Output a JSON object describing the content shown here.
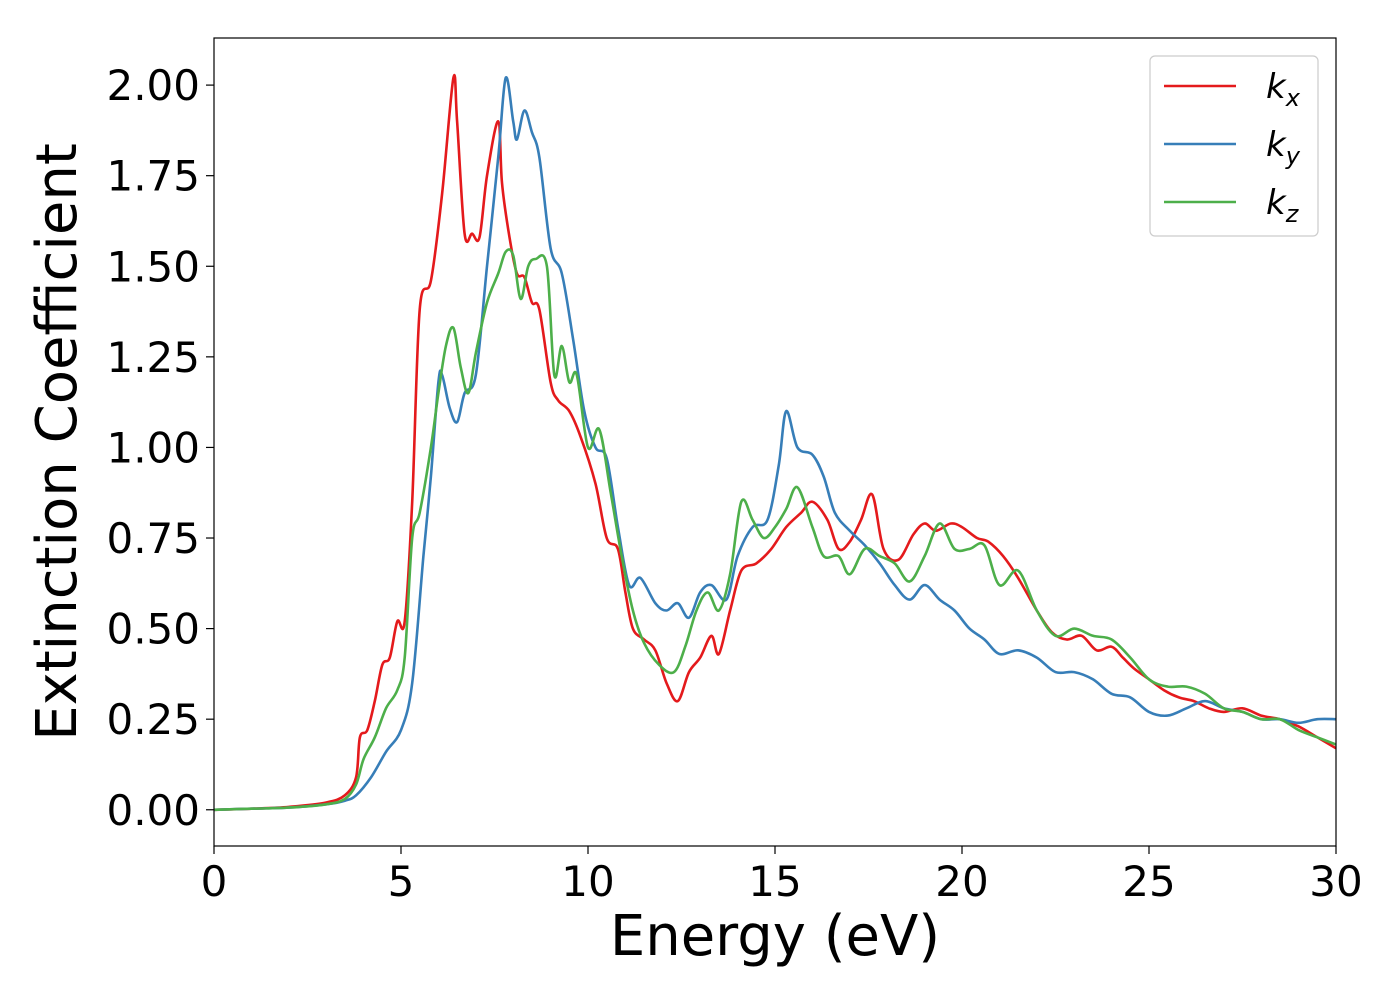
{
  "chart_data": {
    "type": "line",
    "title": "",
    "xlabel": "Energy (eV)",
    "ylabel": "Extinction Coefficient",
    "xlim": [
      0,
      30
    ],
    "ylim": [
      -0.1,
      2.13
    ],
    "xticks": [
      0,
      5,
      10,
      15,
      20,
      25,
      30
    ],
    "xtick_labels": [
      "0",
      "5",
      "10",
      "15",
      "20",
      "25",
      "30"
    ],
    "yticks": [
      0.0,
      0.25,
      0.5,
      0.75,
      1.0,
      1.25,
      1.5,
      1.75,
      2.0
    ],
    "ytick_labels": [
      "0.00",
      "0.25",
      "0.50",
      "0.75",
      "1.00",
      "1.25",
      "1.50",
      "1.75",
      "2.00"
    ],
    "grid": false,
    "legend": "top-right",
    "series": [
      {
        "name": "k_x",
        "label_base": "k",
        "label_sub": "x",
        "color": "#e41a1c",
        "x": [
          0,
          1,
          2,
          3,
          3.5,
          3.8,
          3.9,
          4.1,
          4.3,
          4.5,
          4.7,
          4.9,
          5.1,
          5.3,
          5.5,
          5.8,
          6.1,
          6.4,
          6.5,
          6.7,
          6.9,
          7.1,
          7.3,
          7.6,
          7.7,
          7.9,
          8.1,
          8.3,
          8.5,
          8.7,
          9.0,
          9.2,
          9.5,
          9.8,
          10.2,
          10.5,
          10.8,
          11.0,
          11.2,
          11.5,
          11.8,
          12.1,
          12.4,
          12.7,
          13.0,
          13.3,
          13.5,
          13.8,
          14.1,
          14.5,
          14.9,
          15.3,
          15.7,
          16.0,
          16.4,
          16.7,
          17.0,
          17.3,
          17.6,
          17.9,
          18.3,
          18.7,
          19.0,
          19.3,
          19.7,
          20.0,
          20.4,
          20.7,
          21.1,
          21.5,
          22.0,
          22.4,
          22.8,
          23.2,
          23.6,
          24.0,
          24.3,
          24.6,
          25.0,
          25.4,
          25.8,
          26.2,
          26.6,
          27.0,
          27.5,
          28.0,
          28.5,
          29.0,
          29.5,
          30.0
        ],
        "y": [
          0,
          0.003,
          0.008,
          0.02,
          0.04,
          0.09,
          0.2,
          0.22,
          0.3,
          0.4,
          0.42,
          0.52,
          0.52,
          0.85,
          1.38,
          1.46,
          1.7,
          2.02,
          1.9,
          1.59,
          1.59,
          1.58,
          1.75,
          1.9,
          1.73,
          1.58,
          1.48,
          1.47,
          1.4,
          1.38,
          1.18,
          1.13,
          1.1,
          1.03,
          0.9,
          0.75,
          0.72,
          0.6,
          0.5,
          0.47,
          0.44,
          0.35,
          0.3,
          0.38,
          0.42,
          0.48,
          0.43,
          0.55,
          0.66,
          0.68,
          0.72,
          0.78,
          0.82,
          0.85,
          0.8,
          0.72,
          0.74,
          0.8,
          0.87,
          0.72,
          0.69,
          0.76,
          0.79,
          0.77,
          0.79,
          0.78,
          0.75,
          0.74,
          0.7,
          0.64,
          0.55,
          0.49,
          0.47,
          0.48,
          0.44,
          0.45,
          0.42,
          0.39,
          0.36,
          0.33,
          0.31,
          0.3,
          0.28,
          0.27,
          0.28,
          0.26,
          0.25,
          0.23,
          0.2,
          0.17
        ]
      },
      {
        "name": "k_y",
        "label_base": "k",
        "label_sub": "y",
        "color": "#377eb8",
        "x": [
          0,
          1,
          2,
          3,
          3.5,
          3.8,
          4.2,
          4.6,
          5.0,
          5.3,
          5.6,
          5.8,
          6.0,
          6.1,
          6.3,
          6.5,
          6.7,
          7.0,
          7.3,
          7.6,
          7.8,
          8.0,
          8.1,
          8.3,
          8.5,
          8.7,
          9.0,
          9.3,
          9.6,
          9.9,
          10.2,
          10.5,
          10.8,
          11.1,
          11.4,
          11.8,
          12.1,
          12.4,
          12.7,
          13.0,
          13.3,
          13.7,
          14.0,
          14.4,
          14.8,
          15.1,
          15.3,
          15.6,
          16.0,
          16.3,
          16.6,
          17.0,
          17.4,
          17.8,
          18.2,
          18.6,
          19.0,
          19.4,
          19.8,
          20.2,
          20.6,
          21.0,
          21.5,
          22.0,
          22.5,
          23.0,
          23.5,
          24.0,
          24.5,
          25.0,
          25.5,
          26.0,
          26.5,
          27.0,
          27.5,
          28.0,
          28.5,
          29.0,
          29.5,
          30.0
        ],
        "y": [
          0,
          0.003,
          0.006,
          0.015,
          0.025,
          0.04,
          0.09,
          0.16,
          0.22,
          0.35,
          0.7,
          0.92,
          1.18,
          1.2,
          1.11,
          1.07,
          1.15,
          1.2,
          1.5,
          1.8,
          2.02,
          1.9,
          1.85,
          1.93,
          1.87,
          1.8,
          1.55,
          1.48,
          1.3,
          1.1,
          1.0,
          0.97,
          0.78,
          0.62,
          0.64,
          0.57,
          0.55,
          0.57,
          0.53,
          0.6,
          0.62,
          0.58,
          0.7,
          0.78,
          0.8,
          0.95,
          1.1,
          1.0,
          0.98,
          0.92,
          0.82,
          0.77,
          0.73,
          0.68,
          0.62,
          0.58,
          0.62,
          0.58,
          0.55,
          0.5,
          0.47,
          0.43,
          0.44,
          0.42,
          0.38,
          0.38,
          0.36,
          0.32,
          0.31,
          0.27,
          0.26,
          0.28,
          0.3,
          0.28,
          0.27,
          0.25,
          0.25,
          0.24,
          0.25,
          0.25
        ]
      },
      {
        "name": "k_z",
        "label_base": "k",
        "label_sub": "z",
        "color": "#4daf4a",
        "x": [
          0,
          1,
          2,
          3,
          3.5,
          3.8,
          4.0,
          4.3,
          4.6,
          4.9,
          5.1,
          5.3,
          5.5,
          5.8,
          6.0,
          6.2,
          6.4,
          6.6,
          6.8,
          7.0,
          7.3,
          7.6,
          7.8,
          8.0,
          8.2,
          8.4,
          8.6,
          8.9,
          9.1,
          9.3,
          9.5,
          9.7,
          10.0,
          10.3,
          10.6,
          10.9,
          11.2,
          11.5,
          11.9,
          12.3,
          12.6,
          12.9,
          13.2,
          13.5,
          13.8,
          14.1,
          14.4,
          14.7,
          15.0,
          15.3,
          15.6,
          16.0,
          16.3,
          16.7,
          17.0,
          17.4,
          17.8,
          18.2,
          18.6,
          19.0,
          19.4,
          19.8,
          20.2,
          20.6,
          21.0,
          21.5,
          22.0,
          22.5,
          23.0,
          23.5,
          24.0,
          24.5,
          25.0,
          25.5,
          26.0,
          26.5,
          27.0,
          27.5,
          28.0,
          28.5,
          29.0,
          29.5,
          30.0
        ],
        "y": [
          0,
          0.003,
          0.006,
          0.015,
          0.03,
          0.07,
          0.14,
          0.2,
          0.28,
          0.33,
          0.42,
          0.75,
          0.82,
          1.0,
          1.15,
          1.28,
          1.33,
          1.22,
          1.15,
          1.26,
          1.4,
          1.48,
          1.54,
          1.53,
          1.41,
          1.5,
          1.52,
          1.5,
          1.2,
          1.28,
          1.18,
          1.2,
          1.0,
          1.05,
          0.88,
          0.7,
          0.55,
          0.46,
          0.4,
          0.38,
          0.45,
          0.55,
          0.6,
          0.55,
          0.65,
          0.85,
          0.8,
          0.75,
          0.78,
          0.83,
          0.89,
          0.78,
          0.7,
          0.7,
          0.65,
          0.72,
          0.7,
          0.68,
          0.63,
          0.7,
          0.79,
          0.72,
          0.72,
          0.73,
          0.62,
          0.66,
          0.55,
          0.48,
          0.5,
          0.48,
          0.47,
          0.42,
          0.36,
          0.34,
          0.34,
          0.32,
          0.28,
          0.27,
          0.25,
          0.25,
          0.22,
          0.2,
          0.18
        ]
      }
    ]
  }
}
